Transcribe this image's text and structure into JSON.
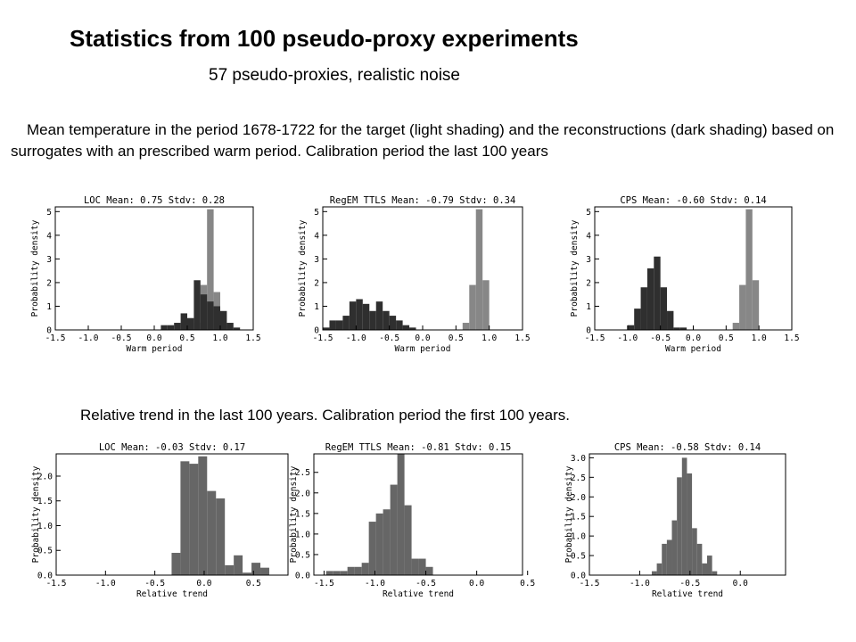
{
  "page": {
    "title": "Statistics from 100 pseudo-proxy experiments",
    "subtitle": "57 pseudo-proxies,  realistic noise",
    "caption_top": "Mean temperature in the period 1678-1722 for the target (light shading) and the reconstructions (dark shading) based on surrogates with an prescribed warm period. Calibration period the last 100 years",
    "caption_bottom": "Relative trend in the last 100 years. Calibration period the first 100 years."
  },
  "colors": {
    "target": "#878787",
    "reconstruction": "#2f2f2f",
    "trend": "#666666"
  },
  "chart_data": [
    {
      "type": "bar",
      "row": "top",
      "title": "LOC   Mean: 0.75 Stdv: 0.28",
      "xlabel": "Warm period",
      "ylabel": "Probability density",
      "xlim": [
        -1.5,
        1.5
      ],
      "ylim": [
        0,
        5.2
      ],
      "xticks": [
        -1.5,
        -1.0,
        -0.5,
        0.0,
        0.5,
        1.0,
        1.5
      ],
      "xtick_labels": [
        "-1.5",
        "-1.0",
        "-0.5",
        "0.0",
        "0.5",
        "1.0",
        "1.5"
      ],
      "yticks": [
        0,
        1,
        2,
        3,
        4,
        5
      ],
      "ytick_labels": [
        "0",
        "1",
        "2",
        "3",
        "4",
        "5"
      ],
      "series": [
        {
          "name": "target",
          "bin_width": 0.1,
          "x": [
            0.6,
            0.7,
            0.8,
            0.9,
            1.0
          ],
          "values": [
            0.3,
            1.9,
            5.1,
            1.6,
            0.2
          ]
        },
        {
          "name": "reconstruction",
          "bin_width": 0.1,
          "x": [
            0.1,
            0.2,
            0.3,
            0.4,
            0.5,
            0.6,
            0.7,
            0.8,
            0.9,
            1.0,
            1.1,
            1.2
          ],
          "values": [
            0.2,
            0.2,
            0.3,
            0.7,
            0.5,
            2.1,
            1.5,
            1.2,
            1.0,
            0.8,
            0.3,
            0.1
          ]
        }
      ]
    },
    {
      "type": "bar",
      "row": "top",
      "title": "RegEM TTLS   Mean: -0.79 Stdv: 0.34",
      "xlabel": "Warm period",
      "ylabel": "Probability density",
      "xlim": [
        -1.5,
        1.5
      ],
      "ylim": [
        0,
        5.2
      ],
      "xticks": [
        -1.5,
        -1.0,
        -0.5,
        0.0,
        0.5,
        1.0,
        1.5
      ],
      "xtick_labels": [
        "-1.5",
        "-1.0",
        "-0.5",
        "0.0",
        "0.5",
        "1.0",
        "1.5"
      ],
      "yticks": [
        0,
        1,
        2,
        3,
        4,
        5
      ],
      "ytick_labels": [
        "0",
        "1",
        "2",
        "3",
        "4",
        "5"
      ],
      "series": [
        {
          "name": "target",
          "bin_width": 0.1,
          "x": [
            0.6,
            0.7,
            0.8,
            0.9
          ],
          "values": [
            0.3,
            1.9,
            5.1,
            2.1
          ]
        },
        {
          "name": "reconstruction",
          "bin_width": 0.1,
          "x": [
            -1.5,
            -1.4,
            -1.3,
            -1.2,
            -1.1,
            -1.0,
            -0.9,
            -0.8,
            -0.7,
            -0.6,
            -0.5,
            -0.4,
            -0.3,
            -0.2
          ],
          "values": [
            0.1,
            0.4,
            0.4,
            0.6,
            1.2,
            1.3,
            1.1,
            0.8,
            1.2,
            0.8,
            0.6,
            0.4,
            0.2,
            0.1
          ]
        }
      ]
    },
    {
      "type": "bar",
      "row": "top",
      "title": "CPS   Mean: -0.60 Stdv: 0.14",
      "xlabel": "Warm period",
      "ylabel": "Probability density",
      "xlim": [
        -1.5,
        1.5
      ],
      "ylim": [
        0,
        5.2
      ],
      "xticks": [
        -1.5,
        -1.0,
        -0.5,
        0.0,
        0.5,
        1.0,
        1.5
      ],
      "xtick_labels": [
        "-1.5",
        "-1.0",
        "-0.5",
        "0.0",
        "0.5",
        "1.0",
        "1.5"
      ],
      "yticks": [
        0,
        1,
        2,
        3,
        4,
        5
      ],
      "ytick_labels": [
        "0",
        "1",
        "2",
        "3",
        "4",
        "5"
      ],
      "series": [
        {
          "name": "target",
          "bin_width": 0.1,
          "x": [
            0.6,
            0.7,
            0.8,
            0.9
          ],
          "values": [
            0.3,
            1.9,
            5.1,
            2.1
          ]
        },
        {
          "name": "reconstruction",
          "bin_width": 0.1,
          "x": [
            -1.0,
            -0.9,
            -0.8,
            -0.7,
            -0.6,
            -0.5,
            -0.4,
            -0.3,
            -0.2
          ],
          "values": [
            0.2,
            0.9,
            1.8,
            2.6,
            3.1,
            1.8,
            0.8,
            0.1,
            0.1
          ]
        }
      ]
    },
    {
      "type": "bar",
      "row": "bottom",
      "title": "LOC   Mean: -0.03 Stdv: 0.17",
      "xlabel": "Relative trend",
      "ylabel": "Probability density",
      "xlim": [
        -1.5,
        0.85
      ],
      "ylim": [
        0,
        2.45
      ],
      "xticks": [
        -1.5,
        -1.0,
        -0.5,
        0.0,
        0.5
      ],
      "xtick_labels": [
        "-1.5",
        "-1.0",
        "-0.5",
        "0.0",
        "0.5"
      ],
      "yticks": [
        0,
        0.5,
        1.0,
        1.5,
        2.0
      ],
      "ytick_labels": [
        "0.0",
        "0.5",
        "1.0",
        "1.5",
        "2.0"
      ],
      "series": [
        {
          "name": "relative trend",
          "bin_width": 0.09,
          "x": [
            -0.33,
            -0.24,
            -0.15,
            -0.06,
            0.03,
            0.12,
            0.21,
            0.3,
            0.39,
            0.48,
            0.57
          ],
          "values": [
            0.45,
            2.3,
            2.25,
            2.4,
            1.7,
            1.55,
            0.2,
            0.4,
            0.05,
            0.25,
            0.15
          ]
        }
      ]
    },
    {
      "type": "bar",
      "row": "bottom",
      "title": "RegEM TTLS   Mean: -0.81 Stdv: 0.15",
      "xlabel": "Relative trend",
      "ylabel": "Probability density",
      "xlim": [
        -1.6,
        0.45
      ],
      "ylim": [
        0,
        2.95
      ],
      "xticks": [
        -1.5,
        -1.0,
        -0.5,
        0.0,
        0.5
      ],
      "xtick_labels": [
        "-1.5",
        "-1.0",
        "-0.5",
        "0.0",
        "0.5"
      ],
      "yticks": [
        0,
        0.5,
        1.0,
        1.5,
        2.0,
        2.5
      ],
      "ytick_labels": [
        "0.0",
        "0.5",
        "1.0",
        "1.5",
        "2.0",
        "2.5"
      ],
      "series": [
        {
          "name": "relative trend",
          "bin_width": 0.07,
          "x": [
            -1.48,
            -1.41,
            -1.34,
            -1.27,
            -1.2,
            -1.13,
            -1.06,
            -0.99,
            -0.92,
            -0.85,
            -0.78,
            -0.71,
            -0.64,
            -0.57,
            -0.5
          ],
          "values": [
            0.1,
            0.1,
            0.1,
            0.2,
            0.2,
            0.3,
            1.3,
            1.5,
            1.6,
            2.2,
            2.95,
            1.7,
            0.4,
            0.4,
            0.2
          ]
        }
      ]
    },
    {
      "type": "bar",
      "row": "bottom",
      "title": "CPS   Mean: -0.58 Stdv: 0.14",
      "xlabel": "Relative trend",
      "ylabel": "Probability density",
      "xlim": [
        -1.5,
        0.45
      ],
      "ylim": [
        0,
        3.1
      ],
      "xticks": [
        -1.5,
        -1.0,
        -0.5,
        0.0
      ],
      "xtick_labels": [
        "-1.5",
        "-1.0",
        "-0.5",
        "0.0"
      ],
      "yticks": [
        0,
        0.5,
        1.0,
        1.5,
        2.0,
        2.5,
        3.0
      ],
      "ytick_labels": [
        "0.0",
        "0.5",
        "1.0",
        "1.5",
        "2.0",
        "2.5",
        "3.0"
      ],
      "series": [
        {
          "name": "relative trend",
          "bin_width": 0.05,
          "x": [
            -0.88,
            -0.83,
            -0.78,
            -0.73,
            -0.68,
            -0.63,
            -0.58,
            -0.53,
            -0.48,
            -0.43,
            -0.38,
            -0.33,
            -0.28
          ],
          "values": [
            0.1,
            0.3,
            0.8,
            0.9,
            1.4,
            2.5,
            3.0,
            2.6,
            1.2,
            0.8,
            0.3,
            0.5,
            0.1
          ]
        }
      ]
    }
  ]
}
